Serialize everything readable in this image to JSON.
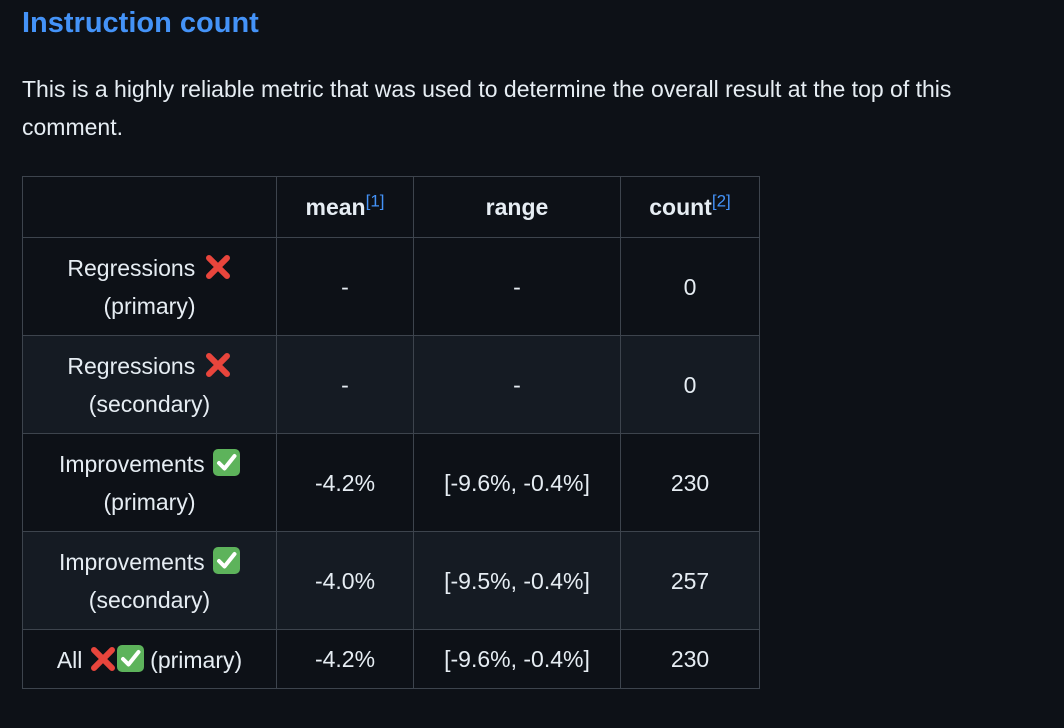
{
  "heading": "Instruction count",
  "intro": "This is a highly reliable metric that was used to determine the overall result at the top of this comment.",
  "table": {
    "headers": {
      "label": "",
      "mean": "mean",
      "mean_ref": "[1]",
      "range": "range",
      "count": "count",
      "count_ref": "[2]"
    },
    "rows": [
      {
        "label_line1": "Regressions",
        "label_line2": "(primary)",
        "icons": [
          "cross-mark"
        ],
        "mean": "-",
        "range": "-",
        "count": "0"
      },
      {
        "label_line1": "Regressions",
        "label_line2": "(secondary)",
        "icons": [
          "cross-mark"
        ],
        "mean": "-",
        "range": "-",
        "count": "0"
      },
      {
        "label_line1": "Improvements",
        "label_line2": "(primary)",
        "icons": [
          "check-mark"
        ],
        "mean": "-4.2%",
        "range": "[-9.6%, -0.4%]",
        "count": "230"
      },
      {
        "label_line1": "Improvements",
        "label_line2": "(secondary)",
        "icons": [
          "check-mark"
        ],
        "mean": "-4.0%",
        "range": "[-9.5%, -0.4%]",
        "count": "257"
      },
      {
        "label_prefix": "All",
        "label_suffix": "(primary)",
        "icons": [
          "cross-mark",
          "check-mark"
        ],
        "mean": "-4.2%",
        "range": "[-9.6%, -0.4%]",
        "count": "230"
      }
    ]
  },
  "colors": {
    "background": "#0d1117",
    "text": "#e6edf3",
    "link": "#4493f8",
    "border": "#3d444d",
    "alt_row": "#151b23",
    "cross": "#e8453c",
    "check_bg": "#5db35b"
  }
}
